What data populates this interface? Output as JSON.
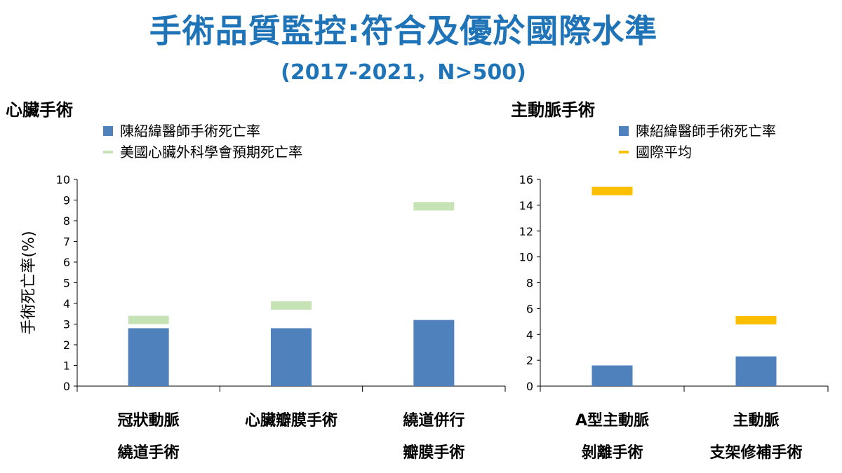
{
  "header": {
    "title": "手術品質監控:符合及優於國際水準",
    "subtitle": "(2017-2021，N>500)"
  },
  "colors": {
    "bar": "#4f81bd",
    "sts": "#c6e3b5",
    "intl": "#fbbf00",
    "title": "#1f73b7"
  },
  "chart_data": [
    {
      "type": "bar",
      "title": "心臟手術",
      "ylabel": "手術死亡率(%)",
      "ylim": [
        0,
        10
      ],
      "yticks": [
        0,
        1,
        2,
        3,
        4,
        5,
        6,
        7,
        8,
        9,
        10
      ],
      "categories": [
        {
          "line1": "冠狀動脈",
          "line2": "繞道手術"
        },
        {
          "line1": "心臟瓣膜手術",
          "line2": ""
        },
        {
          "line1": "繞道併行",
          "line2": "瓣膜手術"
        }
      ],
      "series": [
        {
          "name": "陳紹緯醫師手術死亡率",
          "kind": "bar",
          "color": "#4f81bd",
          "values": [
            2.8,
            2.8,
            3.2
          ]
        },
        {
          "name": "美國心臟外科學會預期死亡率",
          "kind": "marker",
          "color": "#c6e3b5",
          "values": [
            3.2,
            3.9,
            8.7
          ]
        }
      ]
    },
    {
      "type": "bar",
      "title": "主動脈手術",
      "ylabel": "",
      "ylim": [
        0,
        16
      ],
      "yticks": [
        0,
        2,
        4,
        6,
        8,
        10,
        12,
        14,
        16
      ],
      "categories": [
        {
          "line1": "A型主動脈",
          "line2": "剝離手術"
        },
        {
          "line1": "主動脈",
          "line2": "支架修補手術"
        }
      ],
      "series": [
        {
          "name": "陳紹緯醫師手術死亡率",
          "kind": "bar",
          "color": "#4f81bd",
          "values": [
            1.6,
            2.3
          ]
        },
        {
          "name": "國際平均",
          "kind": "marker",
          "color": "#fbbf00",
          "values": [
            15.1,
            5.1
          ]
        }
      ]
    }
  ]
}
